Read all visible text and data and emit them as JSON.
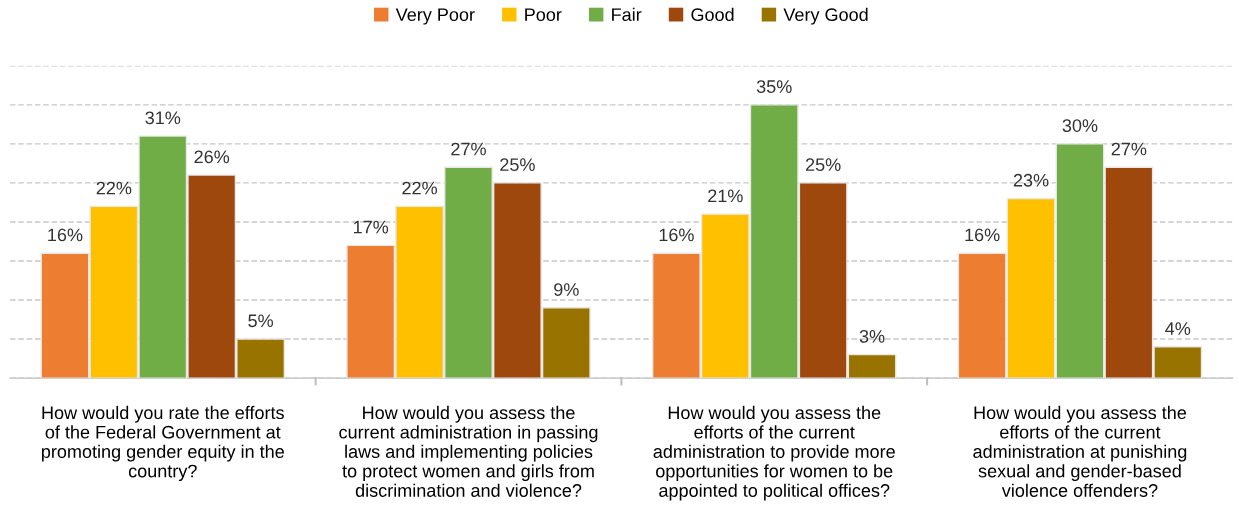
{
  "chart_data": {
    "type": "bar",
    "categories": [
      "How would you rate the efforts\nof the Federal Government at\npromoting gender equity in the\ncountry?",
      "How would you assess the\ncurrent administration in passing\nlaws and implementing policies\nto protect women and girls from\ndiscrimination and violence?",
      "How would you assess the\nefforts of the current\nadministration to provide more\nopportunities for women to be\nappointed to political offices?",
      "How would you assess the\nefforts of the current\nadministration at punishing\nsexual and gender-based\nviolence offenders?"
    ],
    "series": [
      {
        "name": "Very Poor",
        "color": "#ed7d31",
        "values": [
          16,
          17,
          16,
          16
        ],
        "value_labels": [
          "16%",
          "17%",
          "16%",
          "16%"
        ]
      },
      {
        "name": "Poor",
        "color": "#ffc000",
        "values": [
          22,
          22,
          21,
          23
        ],
        "value_labels": [
          "22%",
          "22%",
          "21%",
          "23%"
        ]
      },
      {
        "name": "Fair",
        "color": "#70ad47",
        "values": [
          31,
          27,
          35,
          30
        ],
        "value_labels": [
          "31%",
          "27%",
          "35%",
          "30%"
        ]
      },
      {
        "name": "Good",
        "color": "#9e480e",
        "values": [
          26,
          25,
          25,
          27
        ],
        "value_labels": [
          "26%",
          "25%",
          "25%",
          "27%"
        ]
      },
      {
        "name": "Very Good",
        "color": "#997300",
        "values": [
          5,
          9,
          3,
          4
        ],
        "value_labels": [
          "5%",
          "9%",
          "3%",
          "4%"
        ]
      }
    ],
    "ylim": [
      0,
      40
    ],
    "yticks": [
      0,
      5,
      10,
      15,
      20,
      25,
      30,
      35,
      40
    ],
    "grid": "y",
    "legend": "top",
    "tick_labels": "x"
  }
}
